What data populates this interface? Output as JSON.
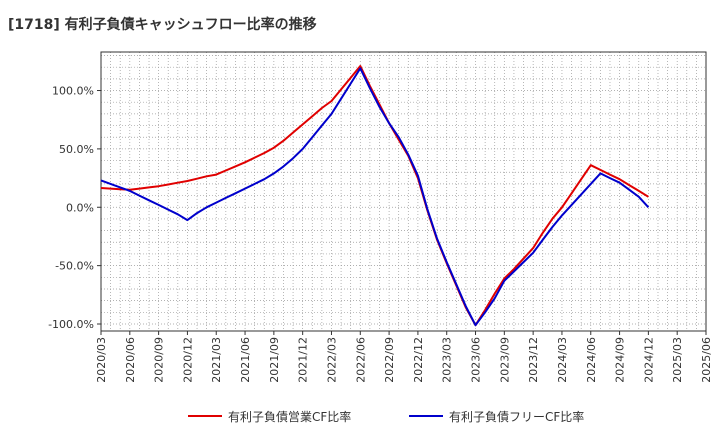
{
  "chart_data": {
    "type": "line",
    "title": "[1718]  有利子負債キャッシュフロー比率の推移",
    "x": [
      "2020/03",
      "2020/06",
      "2020/09",
      "2020/12",
      "2021/03",
      "2021/06",
      "2021/09",
      "2021/12",
      "2022/03",
      "2022/06",
      "2022/09",
      "2022/12",
      "2023/03",
      "2023/06",
      "2023/09",
      "2023/12",
      "2024/03",
      "2024/06",
      "2024/09",
      "2024/12",
      "2025/03",
      "2025/06"
    ],
    "y_ticks": [
      "100.0%",
      "50.0%",
      "0.0%",
      "-50.0%",
      "-100.0%"
    ],
    "ylim": [
      -106,
      133
    ],
    "grid": true,
    "legend_position": "bottom",
    "series": [
      {
        "name": "有利子負債営業CF比率",
        "color": "#e00000",
        "x": [
          "2020/03",
          "2020/04",
          "2020/05",
          "2020/06",
          "2020/07",
          "2020/08",
          "2020/09",
          "2020/10",
          "2020/11",
          "2020/12",
          "2021/01",
          "2021/02",
          "2021/03",
          "2021/04",
          "2021/05",
          "2021/06",
          "2021/07",
          "2021/08",
          "2021/09",
          "2021/10",
          "2021/11",
          "2021/12",
          "2022/01",
          "2022/02",
          "2022/03",
          "2022/04",
          "2022/05",
          "2022/06",
          "2022/07",
          "2022/08",
          "2022/09",
          "2022/10",
          "2022/11",
          "2022/12",
          "2023/01",
          "2023/02",
          "2023/03",
          "2023/04",
          "2023/05",
          "2023/06",
          "2023/07",
          "2023/08",
          "2023/09",
          "2023/10",
          "2023/11",
          "2023/12",
          "2024/01",
          "2024/02",
          "2024/03",
          "2024/04",
          "2024/05",
          "2024/06",
          "2024/07",
          "2024/08",
          "2024/09",
          "2024/10",
          "2024/11",
          "2024/12"
        ],
        "values": [
          16.5,
          16,
          15.5,
          15,
          16,
          17,
          18,
          19.5,
          21,
          22.5,
          24.5,
          26.5,
          28,
          31.5,
          35,
          38.5,
          42.5,
          46.5,
          51,
          57,
          64,
          71,
          78,
          85,
          91,
          101,
          111,
          121,
          104,
          88,
          72,
          58,
          44,
          25,
          -3,
          -28,
          -48,
          -67,
          -86,
          -101,
          -88,
          -74,
          -61,
          -53,
          -44,
          -35,
          -22,
          -10,
          0,
          12,
          24,
          36,
          32,
          28,
          24,
          19,
          14,
          9
        ],
        "hidden": [
          "2020/04",
          "2020/05",
          "2020/07",
          "2020/08",
          "2020/10",
          "2020/11",
          "2021/01",
          "2021/02",
          "2021/04",
          "2021/05",
          "2021/07",
          "2021/08",
          "2021/10",
          "2021/11",
          "2022/01",
          "2022/02",
          "2022/04",
          "2022/05",
          "2022/07",
          "2022/08",
          "2022/10",
          "2022/11",
          "2023/01",
          "2023/02",
          "2023/04",
          "2023/05",
          "2023/07",
          "2023/08",
          "2023/10",
          "2023/11",
          "2024/01",
          "2024/02",
          "2024/04",
          "2024/05",
          "2024/07",
          "2024/08",
          "2024/10",
          "2024/11"
        ]
      },
      {
        "name": "有利子負債フリーCF比率",
        "color": "#0000cc",
        "x": [
          "2020/03",
          "2020/04",
          "2020/05",
          "2020/06",
          "2020/07",
          "2020/08",
          "2020/09",
          "2020/10",
          "2020/11",
          "2020/12",
          "2021/01",
          "2021/02",
          "2021/03",
          "2021/04",
          "2021/05",
          "2021/06",
          "2021/07",
          "2021/08",
          "2021/09",
          "2021/10",
          "2021/11",
          "2021/12",
          "2022/01",
          "2022/02",
          "2022/03",
          "2022/04",
          "2022/05",
          "2022/06",
          "2022/07",
          "2022/08",
          "2022/09",
          "2022/10",
          "2022/11",
          "2022/12",
          "2023/01",
          "2023/02",
          "2023/03",
          "2023/04",
          "2023/05",
          "2023/06",
          "2023/07",
          "2023/08",
          "2023/09",
          "2023/10",
          "2023/11",
          "2023/12",
          "2024/01",
          "2024/02",
          "2024/03",
          "2024/04",
          "2024/05",
          "2024/06",
          "2024/07",
          "2024/08",
          "2024/09",
          "2024/10",
          "2024/11",
          "2024/12"
        ],
        "values": [
          23,
          20,
          17,
          14,
          10,
          6,
          2,
          -2,
          -6,
          -11,
          -5,
          0,
          4,
          8,
          12,
          16,
          20,
          24,
          29,
          35,
          42,
          50,
          60,
          70,
          80,
          93,
          106,
          119,
          102,
          86,
          72,
          60,
          45,
          27,
          -2,
          -27,
          -47,
          -66,
          -85,
          -101,
          -90,
          -78,
          -63,
          -55,
          -47,
          -39,
          -28,
          -17,
          -7,
          2,
          11,
          20,
          29,
          25,
          21,
          15,
          9,
          0
        ],
        "hidden": [
          "2020/04",
          "2020/05",
          "2020/07",
          "2020/08",
          "2020/10",
          "2020/11",
          "2021/01",
          "2021/02",
          "2021/04",
          "2021/05",
          "2021/07",
          "2021/08",
          "2021/10",
          "2021/11",
          "2022/01",
          "2022/02",
          "2022/04",
          "2022/05",
          "2022/07",
          "2022/08",
          "2022/10",
          "2022/11",
          "2023/01",
          "2023/02",
          "2023/04",
          "2023/05",
          "2023/07",
          "2023/08",
          "2023/10",
          "2023/11",
          "2024/01",
          "2024/02",
          "2024/04",
          "2024/05",
          "2024/07",
          "2024/08",
          "2024/10",
          "2024/11"
        ]
      }
    ]
  }
}
